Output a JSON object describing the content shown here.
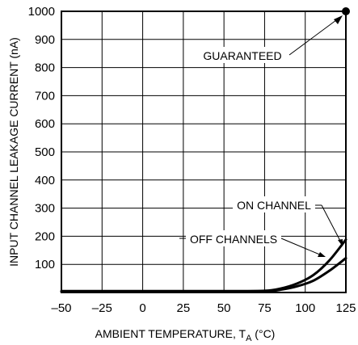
{
  "chart_data": {
    "type": "line",
    "xlabel_main": "AMBIENT TEMPERATURE, T",
    "xlabel_sub": "A",
    "xlabel_unit": " (°C)",
    "ylabel": "INPUT CHANNEL LEAKAGE CURRENT (nA)",
    "xlim": [
      -50,
      125
    ],
    "ylim": [
      0,
      1000
    ],
    "x_ticks": [
      -50,
      -25,
      0,
      25,
      50,
      75,
      100,
      125
    ],
    "x_tick_labels": [
      "–50",
      "–25",
      "0",
      "25",
      "50",
      "75",
      "100",
      "125"
    ],
    "y_ticks": [
      100,
      200,
      300,
      400,
      500,
      600,
      700,
      800,
      900,
      1000
    ],
    "y_tick_labels": [
      "100",
      "200",
      "300",
      "400",
      "500",
      "600",
      "700",
      "800",
      "900",
      "1000"
    ],
    "grid": true,
    "series": [
      {
        "name": "ON CHANNEL",
        "x": [
          -50,
          0,
          50,
          75,
          85,
          95,
          105,
          115,
          125
        ],
        "y": [
          5,
          5,
          5,
          6,
          14,
          32,
          62,
          115,
          188
        ]
      },
      {
        "name": "OFF CHANNELS",
        "x": [
          -50,
          0,
          50,
          75,
          85,
          95,
          105,
          115,
          125
        ],
        "y": [
          3,
          3,
          3,
          4,
          10,
          22,
          42,
          78,
          122
        ]
      }
    ],
    "annotations": [
      {
        "text": "GUARANTEED",
        "point": [
          125,
          1000
        ]
      },
      {
        "text": "ON CHANNEL"
      },
      {
        "text": "OFF CHANNELS"
      }
    ]
  }
}
